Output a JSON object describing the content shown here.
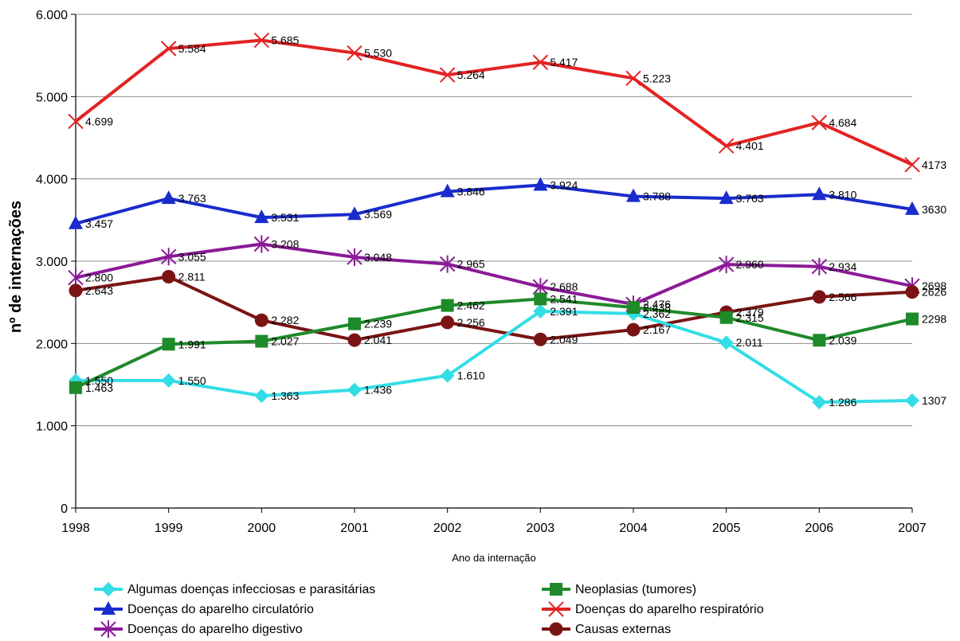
{
  "chart_data": {
    "type": "line",
    "title": "",
    "xlabel": "Ano da internação",
    "ylabel": "nº de internações",
    "ylim": [
      0,
      6000
    ],
    "yticks": [
      0,
      1000,
      2000,
      3000,
      4000,
      5000,
      6000
    ],
    "ytick_labels": [
      "0",
      "1.000",
      "2.000",
      "3.000",
      "4.000",
      "5.000",
      "6.000"
    ],
    "categories": [
      "1998",
      "1999",
      "2000",
      "2001",
      "2002",
      "2003",
      "2004",
      "2005",
      "2006",
      "2007"
    ],
    "grid": "horizontal",
    "legend_position": "bottom",
    "series": [
      {
        "name": "Algumas doenças infecciosas e parasitárias",
        "color": "#33dde6",
        "marker": "diamond",
        "values": [
          1550,
          1550,
          1363,
          1436,
          1610,
          2391,
          2362,
          2011,
          1286,
          1307
        ],
        "labels": [
          "1.550",
          "1.550",
          "1.363",
          "1.436",
          "1.610",
          "2.391",
          "2.362",
          "2.011",
          "1.286",
          "1307"
        ]
      },
      {
        "name": "Neoplasias (tumores)",
        "color": "#1f8a2a",
        "marker": "square",
        "values": [
          1463,
          1991,
          2027,
          2239,
          2462,
          2541,
          2438,
          2315,
          2039,
          2298
        ],
        "labels": [
          "1.463",
          "1.991",
          "2.027",
          "2.239",
          "2.462",
          "2.541",
          "2.438",
          "2.315",
          "2.039",
          "2298"
        ]
      },
      {
        "name": "Doenças do aparelho circulatório",
        "color": "#1a2ccc",
        "marker": "triangle",
        "values": [
          3457,
          3763,
          3531,
          3569,
          3846,
          3924,
          3788,
          3763,
          3810,
          3630
        ],
        "labels": [
          "3.457",
          "3.763",
          "3.531",
          "3.569",
          "3.846",
          "3.924",
          "3.788",
          "3.763",
          "3.810",
          "3630"
        ]
      },
      {
        "name": "Doenças do aparelho respiratório",
        "color": "#e32222",
        "marker": "x",
        "values": [
          4699,
          5584,
          5685,
          5530,
          5264,
          5417,
          5223,
          4401,
          4684,
          4173
        ],
        "labels": [
          "4.699",
          "5.584",
          "5.685",
          "5.530",
          "5.264",
          "5.417",
          "5.223",
          "4.401",
          "4.684",
          "4173"
        ]
      },
      {
        "name": "Doenças do aparelho digestivo",
        "color": "#8a1a96",
        "marker": "star",
        "values": [
          2800,
          3055,
          3208,
          3048,
          2965,
          2688,
          2476,
          2960,
          2934,
          2698
        ],
        "labels": [
          "2.800",
          "3.055",
          "3.208",
          "3.048",
          "2.965",
          "2.688",
          "2.476",
          "2.960",
          "2.934",
          "2698"
        ]
      },
      {
        "name": "Causas externas",
        "color": "#7a1414",
        "marker": "circle",
        "values": [
          2643,
          2811,
          2282,
          2041,
          2256,
          2049,
          2167,
          2379,
          2566,
          2626
        ],
        "labels": [
          "2.643",
          "2.811",
          "2.282",
          "2.041",
          "2.256",
          "2.049",
          "2.167",
          "2.379",
          "2.566",
          "2626"
        ]
      }
    ]
  }
}
